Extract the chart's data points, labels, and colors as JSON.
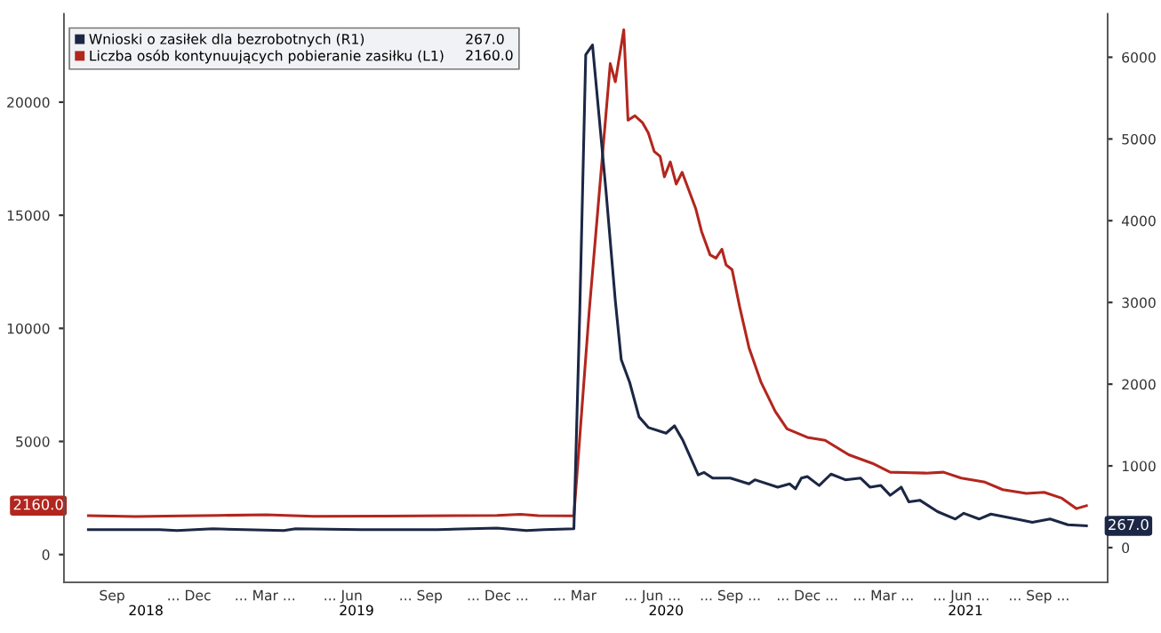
{
  "chart_data": {
    "type": "line",
    "legend": "top left",
    "grid": false,
    "xlim": [
      "2018-07-20",
      "2021-12-05"
    ],
    "xticks": [
      {
        "value": "2018-09-15",
        "label": "Sep"
      },
      {
        "value": "2018-12-15",
        "label": "... Dec"
      },
      {
        "value": "2019-03-15",
        "label": "... Mar ..."
      },
      {
        "value": "2019-06-15",
        "label": "... Jun"
      },
      {
        "value": "2019-09-15",
        "label": "... Sep"
      },
      {
        "value": "2019-12-15",
        "label": "... Dec ..."
      },
      {
        "value": "2020-03-15",
        "label": "... Mar"
      },
      {
        "value": "2020-06-15",
        "label": "... Jun ..."
      },
      {
        "value": "2020-09-15",
        "label": "... Sep ..."
      },
      {
        "value": "2020-12-15",
        "label": "... Dec ..."
      },
      {
        "value": "2021-03-15",
        "label": "... Mar ..."
      },
      {
        "value": "2021-06-15",
        "label": "... Jun ..."
      },
      {
        "value": "2021-09-15",
        "label": "... Sep ..."
      }
    ],
    "x2lim": [
      "2018-07-20",
      "2021-12-05"
    ],
    "x2ticks": [
      {
        "value": "2018-10-25",
        "label": "2018"
      },
      {
        "value": "2019-07-01",
        "label": "2019"
      },
      {
        "value": "2020-07-01",
        "label": "2020"
      },
      {
        "value": "2021-06-20",
        "label": "2021"
      }
    ],
    "ylim": [
      -1230,
      23900
    ],
    "yticks": [
      0,
      5000,
      10000,
      15000,
      20000
    ],
    "y2lim": [
      -425,
      6530
    ],
    "y2ticks": [
      0,
      1000,
      2000,
      3000,
      4000,
      5000,
      6000
    ],
    "series": [
      {
        "name": "Wnioski o zasiłek dla bezrobotnych (R1)",
        "color": "#1c2745",
        "axis": "y2",
        "x": [
          "2018-08-18",
          "2018-11-10",
          "2018-12-01",
          "2019-01-12",
          "2019-04-06",
          "2019-04-20",
          "2019-07-06",
          "2019-10-05",
          "2019-12-14",
          "2020-01-18",
          "2020-02-08",
          "2020-03-14",
          "2020-03-21",
          "2020-03-28",
          "2020-04-05",
          "2020-04-21",
          "2020-05-02",
          "2020-05-09",
          "2020-05-19",
          "2020-05-30",
          "2020-06-10",
          "2020-07-01",
          "2020-07-11",
          "2020-07-21",
          "2020-08-08",
          "2020-08-15",
          "2020-08-25",
          "2020-09-15",
          "2020-10-07",
          "2020-10-14",
          "2020-11-10",
          "2020-11-24",
          "2020-12-01",
          "2020-12-08",
          "2020-12-15",
          "2020-12-29",
          "2021-01-12",
          "2021-01-29",
          "2021-02-16",
          "2021-02-27",
          "2021-03-12",
          "2021-03-23",
          "2021-04-05",
          "2021-04-14",
          "2021-04-27",
          "2021-05-18",
          "2021-06-08",
          "2021-06-18",
          "2021-07-06",
          "2021-07-20",
          "2021-08-24",
          "2021-09-07",
          "2021-09-28",
          "2021-10-19",
          "2021-11-10"
        ],
        "values": [
          220,
          220,
          210,
          230,
          210,
          230,
          220,
          220,
          240,
          210,
          220,
          230,
          2900,
          6030,
          6150,
          4360,
          3020,
          2300,
          2020,
          1600,
          1470,
          1400,
          1490,
          1310,
          890,
          920,
          850,
          850,
          780,
          830,
          740,
          780,
          720,
          850,
          870,
          760,
          900,
          830,
          850,
          740,
          760,
          640,
          740,
          560,
          580,
          440,
          350,
          420,
          350,
          410,
          340,
          310,
          350,
          280,
          267
        ]
      },
      {
        "name": "Liczba osób kontynuujących pobieranie zasiłku (L1)",
        "color": "#b3261e",
        "x": [
          "2018-08-18",
          "2018-10-13",
          "2018-11-17",
          "2019-01-19",
          "2019-03-16",
          "2019-05-11",
          "2019-08-03",
          "2019-12-14",
          "2020-01-11",
          "2020-02-01",
          "2020-03-14",
          "2020-04-01",
          "2020-04-26",
          "2020-05-02",
          "2020-05-12",
          "2020-05-17",
          "2020-05-25",
          "2020-06-03",
          "2020-06-10",
          "2020-06-17",
          "2020-06-24",
          "2020-06-29",
          "2020-07-06",
          "2020-07-13",
          "2020-07-20",
          "2020-08-05",
          "2020-08-12",
          "2020-08-22",
          "2020-08-29",
          "2020-09-05",
          "2020-09-10",
          "2020-09-17",
          "2020-09-26",
          "2020-10-07",
          "2020-10-21",
          "2020-11-07",
          "2020-11-21",
          "2020-12-15",
          "2021-01-05",
          "2021-02-02",
          "2021-03-02",
          "2021-03-23",
          "2021-05-04",
          "2021-05-25",
          "2021-06-15",
          "2021-07-13",
          "2021-08-03",
          "2021-08-31",
          "2021-09-21",
          "2021-10-12",
          "2021-10-29",
          "2021-11-10"
        ],
        "values": [
          1720,
          1680,
          1700,
          1730,
          1760,
          1690,
          1700,
          1730,
          1780,
          1720,
          1710,
          10700,
          21700,
          20900,
          23200,
          19200,
          19400,
          19100,
          18640,
          17820,
          17600,
          16700,
          17360,
          16380,
          16900,
          15300,
          14280,
          13250,
          13100,
          13500,
          12800,
          12600,
          10950,
          9150,
          7640,
          6330,
          5560,
          5180,
          5050,
          4410,
          4030,
          3640,
          3600,
          3640,
          3380,
          3200,
          2870,
          2700,
          2750,
          2490,
          2030,
          2160
        ]
      }
    ],
    "annotations": [
      "267.0",
      "2160.0",
      "267.0",
      "2160.0"
    ]
  }
}
